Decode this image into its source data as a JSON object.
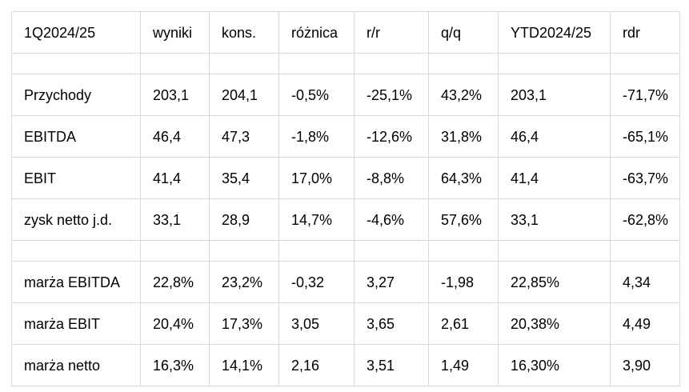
{
  "table": {
    "columns": [
      "1Q2024/25",
      "wyniki",
      "kons.",
      "różnica",
      "r/r",
      "q/q",
      "YTD2024/25",
      "rdr"
    ],
    "sections": [
      {
        "rows": [
          [
            "Przychody",
            "203,1",
            "204,1",
            "-0,5%",
            "-25,1%",
            "43,2%",
            "203,1",
            "-71,7%"
          ],
          [
            "EBITDA",
            "46,4",
            "47,3",
            "-1,8%",
            "-12,6%",
            "31,8%",
            "46,4",
            "-65,1%"
          ],
          [
            "EBIT",
            "41,4",
            "35,4",
            "17,0%",
            "-8,8%",
            "64,3%",
            "41,4",
            "-63,7%"
          ],
          [
            "zysk netto j.d.",
            "33,1",
            "28,9",
            "14,7%",
            "-4,6%",
            "57,6%",
            "33,1",
            "-62,8%"
          ]
        ]
      },
      {
        "rows": [
          [
            "marża EBITDA",
            "22,8%",
            "23,2%",
            "-0,32",
            "3,27",
            "-1,98",
            "22,85%",
            "4,34"
          ],
          [
            "marża EBIT",
            "20,4%",
            "17,3%",
            "3,05",
            "3,65",
            "2,61",
            "20,38%",
            "4,49"
          ],
          [
            "marża netto",
            "16,3%",
            "14,1%",
            "2,16",
            "3,51",
            "1,49",
            "16,30%",
            "3,90"
          ]
        ]
      }
    ]
  }
}
